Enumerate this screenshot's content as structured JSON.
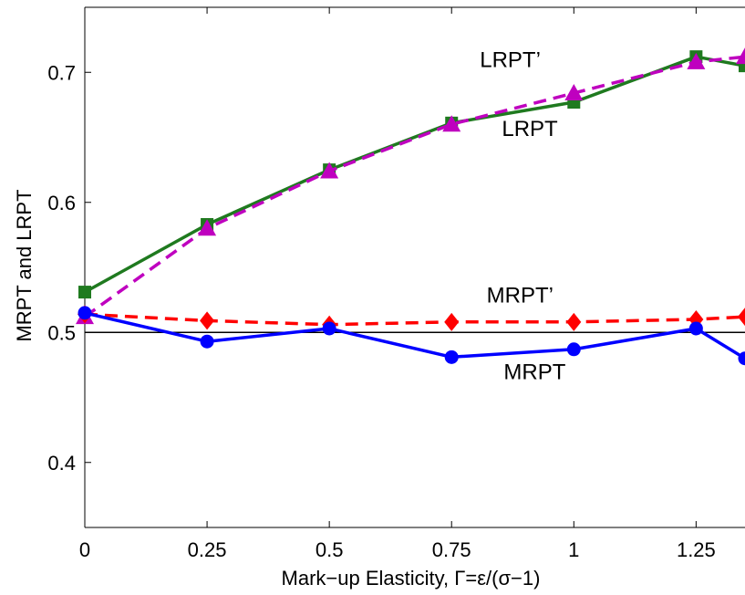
{
  "chart_data": {
    "type": "line",
    "title": "",
    "xlabel": "Mark−up Elasticity, Γ=ε/(σ−1)",
    "ylabel": "MRPT and LRPT",
    "xlim": [
      0,
      1.35
    ],
    "ylim": [
      0.35,
      0.75
    ],
    "x_ticks": [
      "0",
      "0.25",
      "0.5",
      "0.75",
      "1",
      "1.25"
    ],
    "y_ticks": [
      "0.4",
      "0.5",
      "0.6",
      "0.7"
    ],
    "grid": false,
    "legend": "none",
    "reference_line": {
      "y": 0.5,
      "color": "#000000"
    },
    "x": [
      0,
      0.25,
      0.5,
      0.75,
      1.0,
      1.25,
      1.35
    ],
    "series": [
      {
        "key": "lrpt",
        "values": [
          0.531,
          0.583,
          0.625,
          0.661,
          0.677,
          0.712,
          0.705
        ],
        "color": "#1f7a1f",
        "dash": "solid",
        "marker": "square"
      },
      {
        "key": "lrpt_prime",
        "values": [
          0.512,
          0.58,
          0.624,
          0.66,
          0.684,
          0.708,
          0.712
        ],
        "color": "#bf00bf",
        "dash": "dashed",
        "marker": "triangle"
      },
      {
        "key": "mrpt_prime",
        "values": [
          0.514,
          0.509,
          0.506,
          0.508,
          0.508,
          0.51,
          0.512
        ],
        "color": "#ff0000",
        "dash": "dashed",
        "marker": "diamond"
      },
      {
        "key": "mrpt",
        "values": [
          0.515,
          0.493,
          0.503,
          0.481,
          0.487,
          0.503,
          0.48
        ],
        "color": "#0000ff",
        "dash": "solid",
        "marker": "circle"
      }
    ],
    "annotations": [
      {
        "text": "LRPT’",
        "x": 0.87,
        "y": 0.704
      },
      {
        "text": "LRPT",
        "x": 0.91,
        "y": 0.651
      },
      {
        "text": "MRPT’",
        "x": 0.89,
        "y": 0.523
      },
      {
        "text": "MRPT",
        "x": 0.92,
        "y": 0.464
      }
    ]
  }
}
